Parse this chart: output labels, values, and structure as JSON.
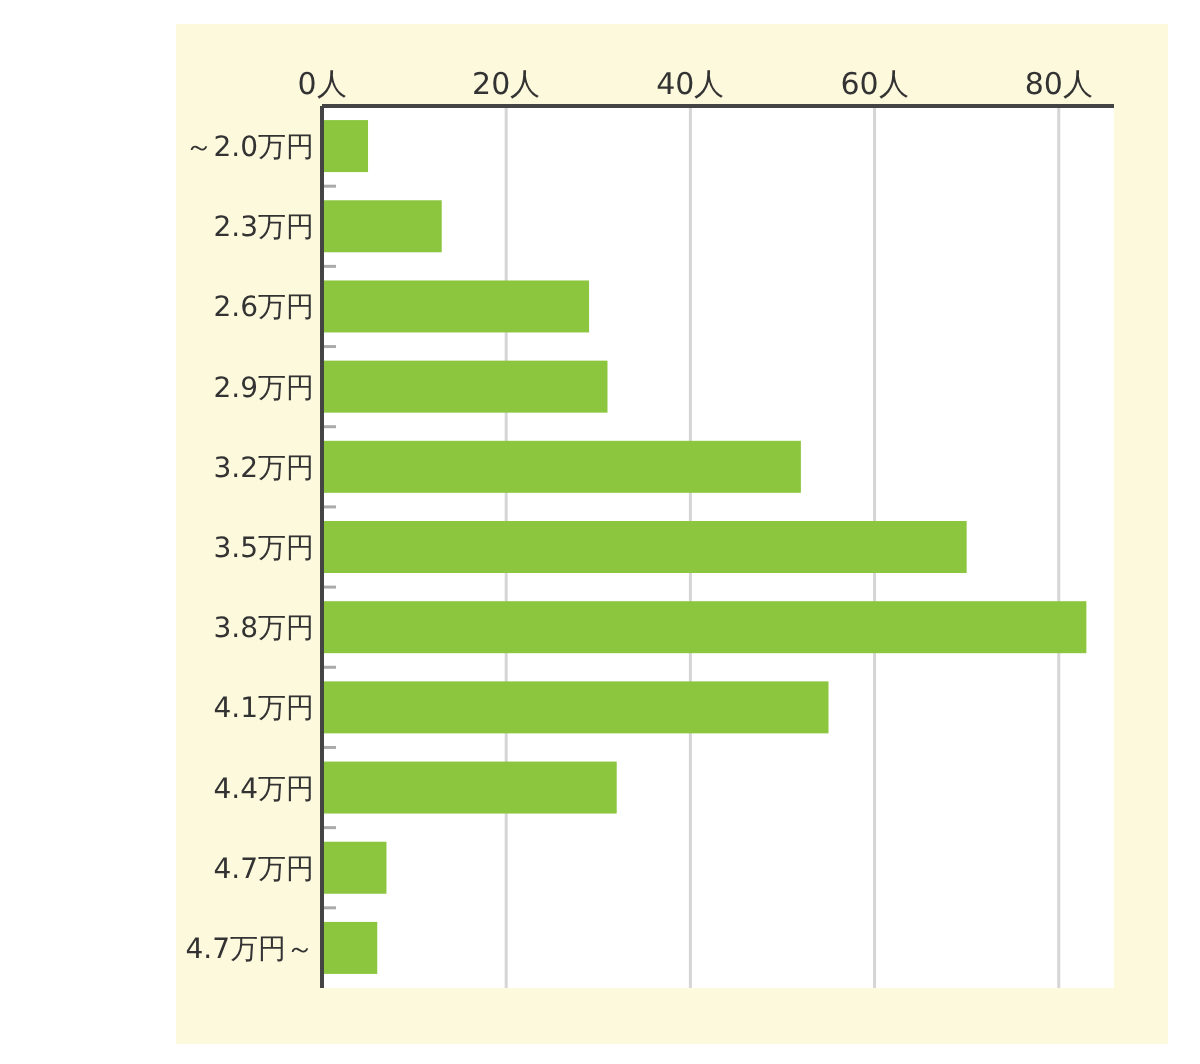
{
  "chart_data": {
    "type": "bar",
    "orientation": "horizontal",
    "categories": [
      "～2.0万円",
      "2.3万円",
      "2.6万円",
      "2.9万円",
      "3.2万円",
      "3.5万円",
      "3.8万円",
      "4.1万円",
      "4.4万円",
      "4.7万円",
      "4.7万円～"
    ],
    "values": [
      5,
      13,
      29,
      31,
      52,
      70,
      83,
      55,
      32,
      7,
      6
    ],
    "color": "#8cc63f",
    "xlim": [
      0,
      86
    ],
    "xticks": [
      {
        "value": 0,
        "label": "0人"
      },
      {
        "value": 20,
        "label": "20人"
      },
      {
        "value": 40,
        "label": "40人"
      },
      {
        "value": 60,
        "label": "60人"
      },
      {
        "value": 80,
        "label": "80人"
      }
    ],
    "grid": "x"
  }
}
